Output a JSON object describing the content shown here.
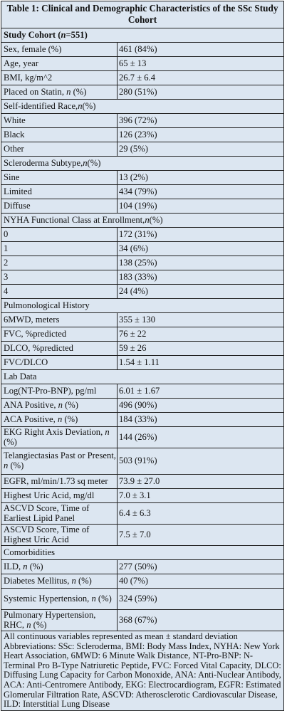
{
  "table": {
    "title": "Table 1: Clinical and Demographic Characteristics of the SSc Study Cohort",
    "cohort_label_prefix": "Study Cohort (",
    "cohort_label_n": "n",
    "cohort_label_suffix": "=551)",
    "sections": [
      {
        "rows": [
          {
            "label": "Sex, female (%)",
            "value": "461 (84%)"
          },
          {
            "label": "Age, year",
            "value": "65 ± 13"
          },
          {
            "label": "BMI, kg/m^2",
            "value": "26.7 ± 6.4"
          },
          {
            "label": "Placed on Statin, n (%)",
            "value": "280 (51%)"
          }
        ]
      },
      {
        "heading": "Self-identified Race, n (%)",
        "rows": [
          {
            "label": "White",
            "value": "396 (72%)"
          },
          {
            "label": "Black",
            "value": "126 (23%)"
          },
          {
            "label": "Other",
            "value": "29 (5%)"
          }
        ]
      },
      {
        "heading": "Scleroderma Subtype, n (%)",
        "rows": [
          {
            "label": "Sine",
            "value": "13 (2%)"
          },
          {
            "label": "Limited",
            "value": "434 (79%)"
          },
          {
            "label": "Diffuse",
            "value": "104 (19%)"
          }
        ]
      },
      {
        "heading": "NYHA Functional Class at Enrollment, n (%)",
        "rows": [
          {
            "label": "0",
            "value": "172 (31%)"
          },
          {
            "label": "1",
            "value": "34 (6%)"
          },
          {
            "label": "2",
            "value": "138 (25%)"
          },
          {
            "label": "3",
            "value": "183 (33%)"
          },
          {
            "label": "4",
            "value": "24 (4%)"
          }
        ]
      },
      {
        "heading": "Pulmonological History",
        "rows": [
          {
            "label": "6MWD, meters",
            "value": "355 ± 130"
          },
          {
            "label": "FVC, %predicted",
            "value": "76 ± 22"
          },
          {
            "label": "DLCO, %predicted",
            "value": "59 ± 26"
          },
          {
            "label": "FVC/DLCO",
            "value": "1.54 ± 1.11"
          }
        ]
      },
      {
        "heading": "Lab Data",
        "rows": [
          {
            "label": "Log(NT-Pro-BNP), pg/ml",
            "value": "6.01 ± 1.67"
          },
          {
            "label": "ANA Positive, n (%)",
            "value": "496 (90%)"
          },
          {
            "label": "ACA Positive, n (%)",
            "value": "184 (33%)"
          },
          {
            "label": "EKG Right Axis Deviation, n (%)",
            "value": "144 (26%)"
          },
          {
            "label": "Telangiectasias Past or Present, n (%)",
            "value": "503 (91%)"
          },
          {
            "label": "EGFR, ml/min/1.73 sq meter",
            "value": "73.9 ± 27.0"
          },
          {
            "label": "Highest Uric Acid, mg/dl",
            "value": "7.0 ± 3.1"
          },
          {
            "label": "ASCVD Score, Time of Earliest Lipid Panel",
            "value": "6.4 ± 6.3"
          },
          {
            "label": "ASCVD Score, Time of Highest Uric Acid",
            "value": "7.5 ± 7.0"
          }
        ]
      },
      {
        "heading": "Comorbidities",
        "rows": [
          {
            "label": "ILD, n (%)",
            "value": "277 (50%)"
          },
          {
            "label": "Diabetes Mellitus, n (%)",
            "value": "40 (7%)"
          },
          {
            "label": "Systemic Hypertension, n (%)",
            "value": "324 (59%)"
          },
          {
            "label": "Pulmonary Hypertension, RHC, n (%)",
            "value": "368 (67%)"
          }
        ]
      }
    ],
    "footer": "All continuous variables represented as mean ± standard deviation Abbreviations: SSc: Scleroderma, BMI: Body Mass Index, NYHA: New York Heart Association, 6MWD: 6 Minute Walk Distance, NT-Pro-BNP: N-Terminal Pro B-Type Natriuretic Peptide, FVC: Forced Vital Capacity, DLCO: Diffusing Lung Capacity for Carbon Monoxide, ANA: Anti-Nuclear Antibody, ACA: Anti-Centromere Antibody, EKG: Electrocardiogram, EGFR: Estimated Glomerular Filtration Rate, ASCVD: Atherosclerotic Cardiovascular Disease, ILD: Interstitial Lung Disease"
  },
  "colors": {
    "background": "#dce6f1",
    "border": "#222222"
  }
}
